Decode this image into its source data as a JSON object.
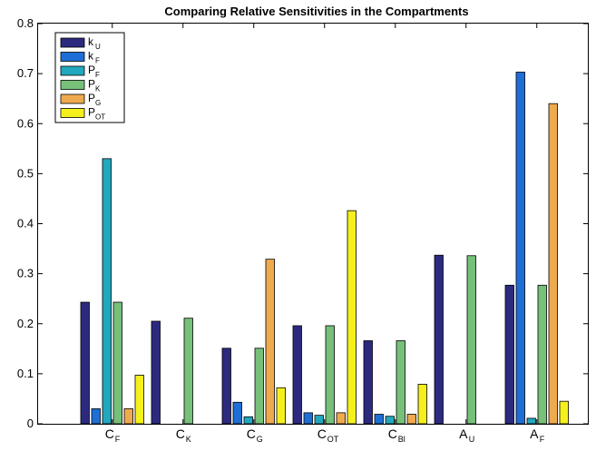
{
  "chart_data": {
    "type": "bar",
    "title": "Comparing Relative Sensitivities in the Compartments",
    "xlabel": "",
    "ylabel": "",
    "ylim": [
      0,
      0.8
    ],
    "yticks": [
      "0",
      "0.1",
      "0.2",
      "0.3",
      "0.4",
      "0.5",
      "0.6",
      "0.7",
      "0.8"
    ],
    "grid": false,
    "legend_position": "top-left",
    "categories": [
      {
        "main": "C",
        "sub": "F"
      },
      {
        "main": "C",
        "sub": "K"
      },
      {
        "main": "C",
        "sub": "G"
      },
      {
        "main": "C",
        "sub": "OT"
      },
      {
        "main": "C",
        "sub": "Bl"
      },
      {
        "main": "A",
        "sub": "U"
      },
      {
        "main": "A",
        "sub": "F"
      }
    ],
    "series": [
      {
        "name_main": "k",
        "name_sub": "U",
        "color": "#2c2a7f",
        "values": [
          0.243,
          0.205,
          0.151,
          0.196,
          0.166,
          0.337,
          0.277
        ]
      },
      {
        "name_main": "k",
        "name_sub": "F",
        "color": "#1d6fd6",
        "values": [
          0.03,
          0,
          0.043,
          0.022,
          0.019,
          0,
          0.703
        ]
      },
      {
        "name_main": "P",
        "name_sub": "F",
        "color": "#21a8bf",
        "values": [
          0.53,
          0,
          0.014,
          0.017,
          0.015,
          0,
          0.011
        ]
      },
      {
        "name_main": "P",
        "name_sub": "K",
        "color": "#76c07a",
        "values": [
          0.243,
          0.211,
          0.151,
          0.196,
          0.166,
          0.336,
          0.277
        ]
      },
      {
        "name_main": "P",
        "name_sub": "G",
        "color": "#eeaa4e",
        "values": [
          0.03,
          0,
          0.329,
          0.022,
          0.019,
          0,
          0.64
        ]
      },
      {
        "name_main": "P",
        "name_sub": "OT",
        "color": "#f5f01c",
        "values": [
          0.097,
          0,
          0.072,
          0.426,
          0.079,
          0,
          0.045
        ]
      }
    ]
  }
}
